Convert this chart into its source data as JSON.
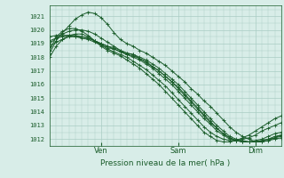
{
  "title": "Pression niveau de la mer( hPa )",
  "ylabel_values": [
    1012,
    1013,
    1014,
    1015,
    1016,
    1017,
    1018,
    1019,
    1020,
    1021
  ],
  "ylim": [
    1011.5,
    1021.8
  ],
  "xlim": [
    0,
    108
  ],
  "xtick_positions": [
    24,
    60,
    96
  ],
  "xtick_labels": [
    "Ven",
    "Sam",
    "Dim"
  ],
  "bg_color": "#d8ede8",
  "grid_color": "#aaccc4",
  "line_color": "#1a5c2a",
  "series": [
    [
      1018.3,
      1019.2,
      1019.8,
      1020.3,
      1020.8,
      1021.1,
      1021.3,
      1021.2,
      1020.9,
      1020.4,
      1019.8,
      1019.3,
      1019.0,
      1018.8,
      1018.5,
      1018.3,
      1018.0,
      1017.7,
      1017.4,
      1017.0,
      1016.6,
      1016.2,
      1015.7,
      1015.3,
      1014.8,
      1014.4,
      1013.9,
      1013.4,
      1012.9,
      1012.5,
      1012.2,
      1012.0,
      1011.8,
      1011.8,
      1011.9,
      1012.1,
      1012.3
    ],
    [
      1019.0,
      1019.4,
      1019.7,
      1019.9,
      1020.0,
      1020.0,
      1019.9,
      1019.7,
      1019.4,
      1019.1,
      1018.8,
      1018.5,
      1018.3,
      1018.2,
      1018.0,
      1017.8,
      1017.5,
      1017.2,
      1016.8,
      1016.4,
      1016.0,
      1015.5,
      1015.0,
      1014.5,
      1014.0,
      1013.5,
      1013.0,
      1012.6,
      1012.2,
      1012.0,
      1011.9,
      1011.8,
      1011.8,
      1011.8,
      1011.9,
      1012.0,
      1012.1
    ],
    [
      1018.8,
      1019.1,
      1019.3,
      1019.5,
      1019.5,
      1019.5,
      1019.4,
      1019.2,
      1019.0,
      1018.8,
      1018.6,
      1018.4,
      1018.2,
      1018.1,
      1017.9,
      1017.6,
      1017.3,
      1017.0,
      1016.6,
      1016.2,
      1015.8,
      1015.3,
      1014.8,
      1014.3,
      1013.8,
      1013.3,
      1012.8,
      1012.4,
      1012.1,
      1011.9,
      1011.8,
      1011.8,
      1011.8,
      1011.9,
      1012.0,
      1012.1,
      1012.2
    ],
    [
      1019.2,
      1019.4,
      1019.5,
      1019.6,
      1019.6,
      1019.5,
      1019.4,
      1019.2,
      1019.0,
      1018.8,
      1018.7,
      1018.5,
      1018.3,
      1018.2,
      1017.9,
      1017.7,
      1017.3,
      1017.0,
      1016.6,
      1016.2,
      1015.7,
      1015.2,
      1014.7,
      1014.2,
      1013.7,
      1013.2,
      1012.8,
      1012.4,
      1012.1,
      1011.9,
      1011.8,
      1011.8,
      1011.8,
      1011.9,
      1012.0,
      1012.2,
      1012.3
    ],
    [
      1019.5,
      1019.6,
      1019.6,
      1019.6,
      1019.5,
      1019.4,
      1019.3,
      1019.1,
      1018.9,
      1018.7,
      1018.6,
      1018.4,
      1018.2,
      1018.0,
      1017.8,
      1017.5,
      1017.2,
      1016.8,
      1016.4,
      1016.0,
      1015.5,
      1015.0,
      1014.5,
      1014.0,
      1013.5,
      1013.1,
      1012.6,
      1012.3,
      1012.0,
      1011.9,
      1011.8,
      1011.8,
      1011.9,
      1012.0,
      1012.2,
      1012.4,
      1012.5
    ],
    [
      1018.5,
      1019.5,
      1019.9,
      1020.1,
      1020.1,
      1019.9,
      1019.6,
      1019.2,
      1018.9,
      1018.6,
      1018.4,
      1018.2,
      1018.0,
      1017.7,
      1017.4,
      1017.1,
      1016.7,
      1016.3,
      1015.9,
      1015.4,
      1014.9,
      1014.4,
      1013.9,
      1013.4,
      1012.9,
      1012.5,
      1012.2,
      1012.0,
      1011.9,
      1011.9,
      1012.0,
      1012.1,
      1012.3,
      1012.6,
      1012.8,
      1013.0,
      1013.2
    ],
    [
      1018.0,
      1018.8,
      1019.3,
      1019.6,
      1019.7,
      1019.7,
      1019.5,
      1019.2,
      1018.8,
      1018.5,
      1018.3,
      1018.1,
      1017.8,
      1017.5,
      1017.2,
      1016.8,
      1016.4,
      1016.0,
      1015.5,
      1015.0,
      1014.5,
      1014.0,
      1013.5,
      1013.0,
      1012.5,
      1012.2,
      1011.9,
      1011.8,
      1011.8,
      1011.9,
      1012.1,
      1012.3,
      1012.6,
      1012.9,
      1013.2,
      1013.5,
      1013.7
    ]
  ]
}
